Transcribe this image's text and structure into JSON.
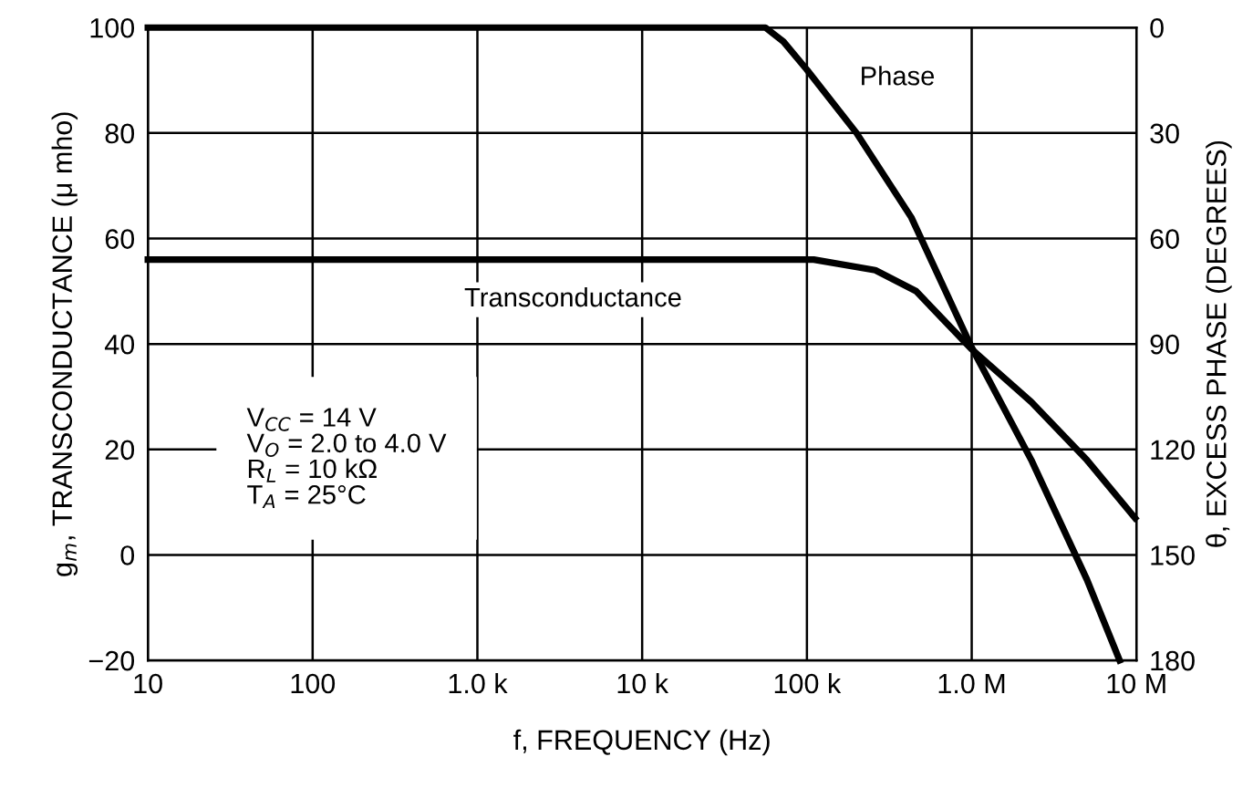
{
  "chart_data": {
    "type": "line",
    "xlabel": "f, FREQUENCY (Hz)",
    "ylabel": "g$_{m}$, TRANSCONDUCTANCE (μ mho)",
    "y2label": "θ, EXCESS PHASE (DEGREES)",
    "log": "x",
    "xlim": [
      10,
      10000000
    ],
    "xticks": [
      10,
      100,
      {
        "value": 1000,
        "label": "1.0 k"
      },
      {
        "value": 10000,
        "label": "10 k"
      },
      {
        "value": 100000,
        "label": "100 k"
      },
      {
        "value": 1000000,
        "label": "1.0 M"
      },
      {
        "value": 10000000,
        "label": "10 M"
      }
    ],
    "ylim": [
      -20,
      100
    ],
    "yticks": [
      {
        "value": -20,
        "label": "−20"
      },
      0,
      20,
      40,
      60,
      80,
      100
    ],
    "y2lim": [
      180,
      0
    ],
    "y2ticks": [
      0,
      30,
      60,
      90,
      120,
      150,
      180
    ],
    "grid": true,
    "annotations": [
      "V$_{CC}$ = 14 V\nV$_{O}$ = 2.0 to 4.0 V\nR$_{L}$ = 10 kΩ\nT$_{A}$ = 25°C"
    ],
    "series": [
      {
        "name": "Phase",
        "color": "#000000",
        "axis": "y2",
        "x": [
          10,
          20000,
          56000,
          72000,
          100000,
          200000,
          430000,
          1000000,
          2300000,
          5000000,
          7900000
        ],
        "values": [
          0,
          0,
          0,
          4,
          12,
          30,
          54,
          91,
          123,
          157,
          180
        ]
      },
      {
        "name": "Transconductance",
        "color": "#000000",
        "x": [
          10,
          20000,
          110000,
          260000,
          460000,
          1000000,
          2300000,
          5000000,
          9800000
        ],
        "values": [
          56,
          56,
          56,
          54,
          50,
          39,
          29,
          18,
          7
        ]
      }
    ]
  }
}
